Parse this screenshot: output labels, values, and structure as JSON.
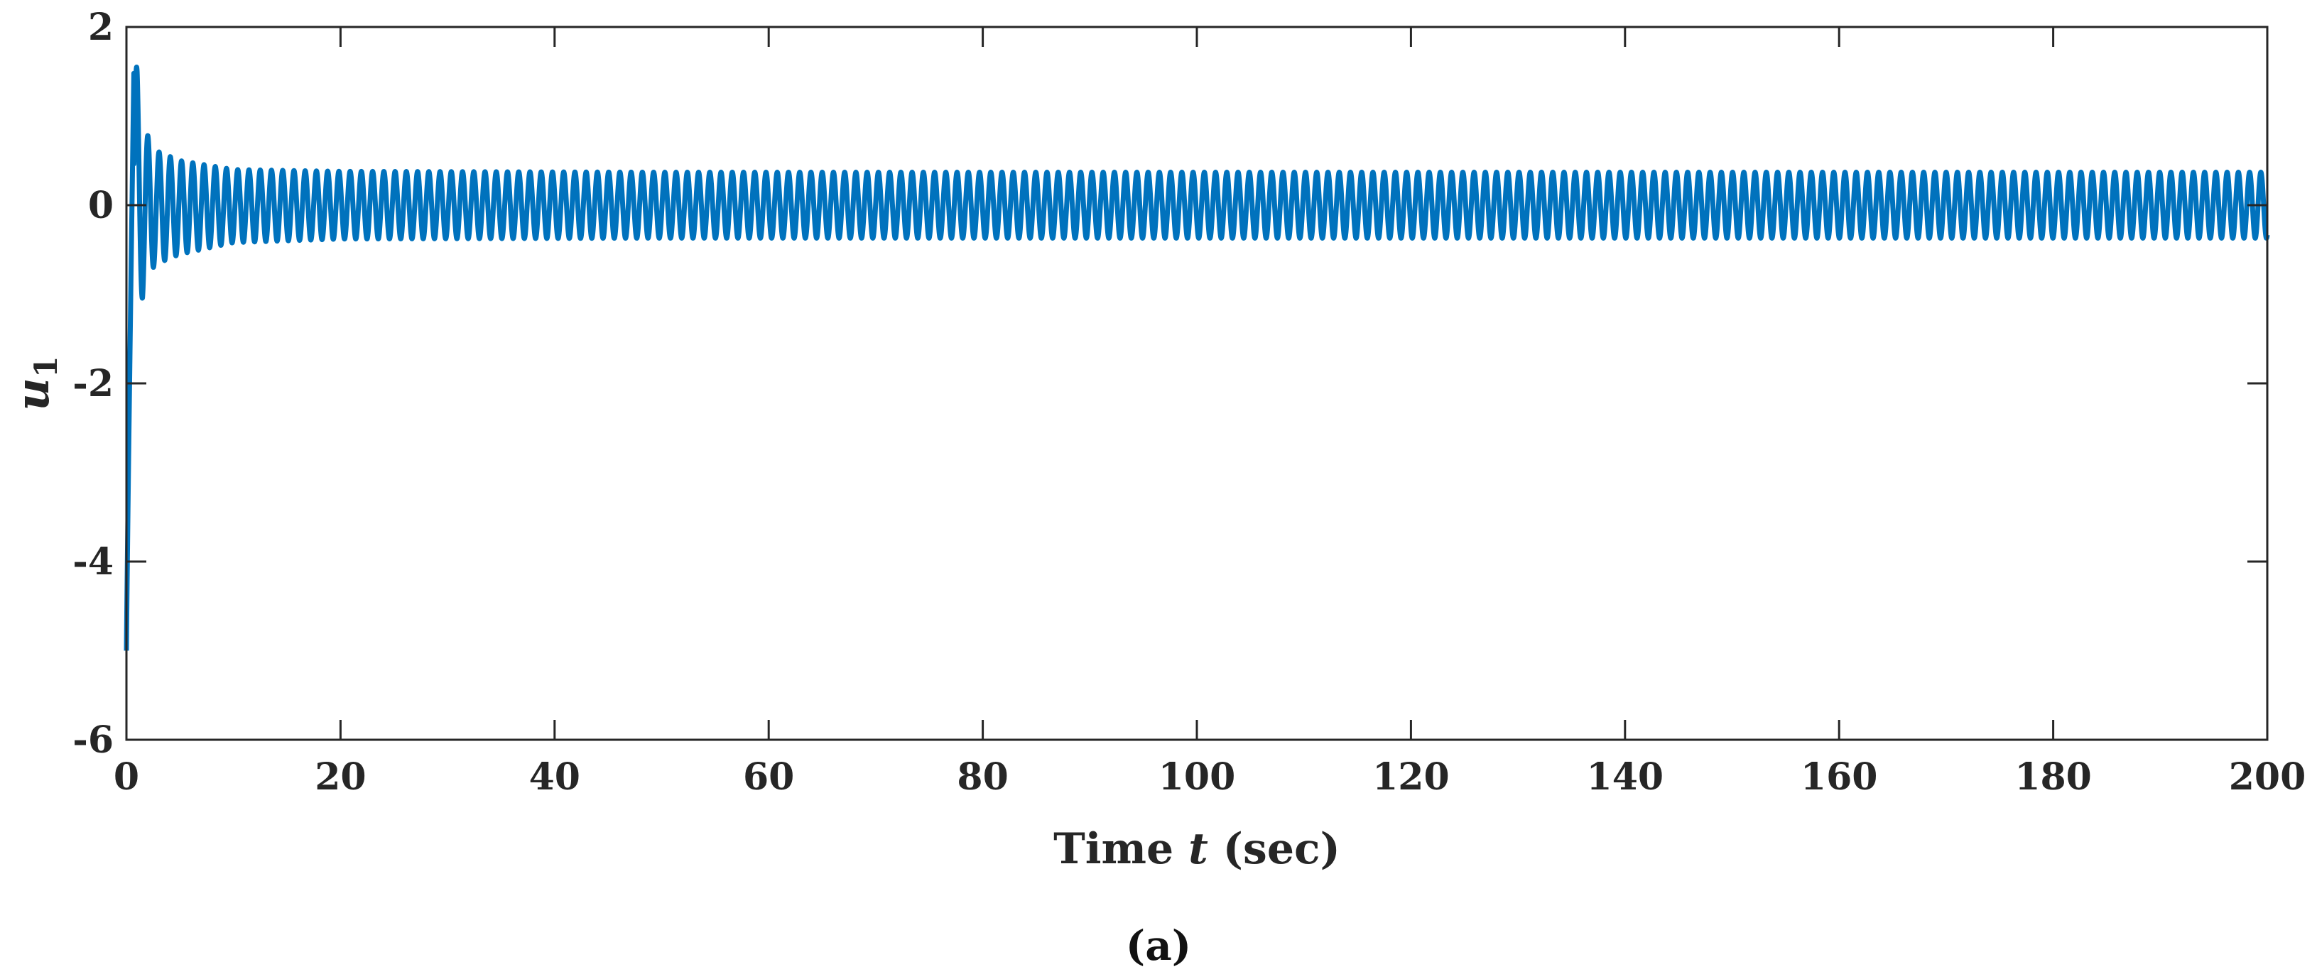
{
  "caption": "(a)",
  "chart_data": {
    "type": "line",
    "title": "",
    "xlabel": "Time t (sec)",
    "xlabel_parts": {
      "before": "Time ",
      "var": "t",
      "after": " (sec)"
    },
    "ylabel": "u1",
    "ylabel_parts": {
      "var": "u",
      "sub": "1"
    },
    "xlim": [
      0,
      200
    ],
    "ylim": [
      -6,
      2
    ],
    "xticks": [
      0,
      20,
      40,
      60,
      80,
      100,
      120,
      140,
      160,
      180,
      200
    ],
    "xtick_labels": [
      "0",
      "20",
      "40",
      "60",
      "80",
      "100",
      "120",
      "140",
      "160",
      "180",
      "200"
    ],
    "yticks": [
      -6,
      -4,
      -2,
      0,
      2
    ],
    "ytick_labels": [
      "-6",
      "-4",
      "-2",
      "0",
      "2"
    ],
    "grid": false,
    "legend": "none",
    "color": "#0072BD",
    "series": [
      {
        "description": "oscillatory control signal u1(t)",
        "initial_value": -5,
        "first_peak": 1.55,
        "first_trough": -1.05,
        "steady_state_amplitude": 0.37,
        "steady_state_mean": 0,
        "period": 1.05,
        "x": [
          0,
          0.3,
          0.7,
          1.0,
          1.5,
          2.0,
          2.5,
          3.0,
          5,
          10,
          20,
          50,
          100,
          150,
          200
        ],
        "envelope_upper": [
          -5,
          1.0,
          1.55,
          1.55,
          0.9,
          0.78,
          0.65,
          0.6,
          0.5,
          0.4,
          0.38,
          0.37,
          0.37,
          0.37,
          0.37
        ],
        "envelope_lower": [
          -5,
          -2,
          -0.8,
          -0.9,
          -1.05,
          -0.8,
          -0.7,
          -0.65,
          -0.55,
          -0.42,
          -0.38,
          -0.37,
          -0.37,
          -0.37,
          -0.37
        ]
      }
    ]
  }
}
